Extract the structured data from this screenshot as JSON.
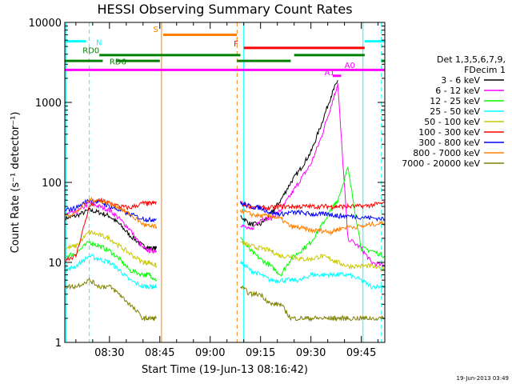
{
  "chart_data": {
    "type": "line",
    "title": "HESSI Observing Summary Count Rates",
    "xlabel": "Start Time (19-Jun-13 08:16:42)",
    "ylabel": "Count Rate (s⁻¹ detector⁻¹)",
    "y_scale": "log",
    "ylim": [
      1,
      10000
    ],
    "xlim": [
      "08:16:42",
      "09:52:00"
    ],
    "x_ticks": [
      "08:30",
      "08:45",
      "09:00",
      "09:15",
      "09:30",
      "09:45"
    ],
    "y_ticks": [
      "1",
      "10",
      "100",
      "1000",
      "10000"
    ],
    "legend": {
      "position": "right",
      "header": [
        "Det 1,3,5,6,7,9,",
        "FDecim 1"
      ],
      "entries": [
        {
          "label": "3 - 6 keV",
          "color": "#000000"
        },
        {
          "label": "6 - 12 keV",
          "color": "#ff00ff"
        },
        {
          "label": "12 - 25 keV",
          "color": "#00ff00"
        },
        {
          "label": "25 - 50 keV",
          "color": "#00ffff"
        },
        {
          "label": "50 - 100 keV",
          "color": "#c8c800"
        },
        {
          "label": "100 - 300 keV",
          "color": "#ff0000"
        },
        {
          "label": "300 - 800 keV",
          "color": "#0000ff"
        },
        {
          "label": "800 - 7000 keV",
          "color": "#ff8000"
        },
        {
          "label": "7000 - 20000 keV",
          "color": "#808000"
        }
      ]
    },
    "flag_bars": [
      {
        "label": "N",
        "color": "#00ffff",
        "start": "08:16:42",
        "end": "08:23",
        "level": 5800
      },
      {
        "label": "N",
        "color": "#00ffff",
        "start": "09:46",
        "end": "09:52",
        "level": 5800
      },
      {
        "label": "S",
        "color": "#ff8000",
        "start": "08:46",
        "end": "09:08",
        "level": 7000
      },
      {
        "label": "F",
        "color": "#ff0000",
        "start": "09:10",
        "end": "09:46",
        "level": 4800
      },
      {
        "label": "RD0",
        "color": "#008000",
        "start": "08:27",
        "end": "09:09",
        "level": 3900
      },
      {
        "label": "RD0",
        "color": "#008000",
        "start": "09:25",
        "end": "09:46",
        "level": 3900
      },
      {
        "label": "RD6",
        "color": "#008000",
        "start": "08:16:42",
        "end": "08:28",
        "level": 3300
      },
      {
        "label": "RD6",
        "color": "#008000",
        "start": "08:32",
        "end": "08:45",
        "level": 3300
      },
      {
        "label": "RD6",
        "color": "#008000",
        "start": "09:08",
        "end": "09:24",
        "level": 3300
      },
      {
        "label": "RD6",
        "color": "#008000",
        "start": "09:51",
        "end": "09:52",
        "level": 3300
      },
      {
        "label": "A1",
        "color": "#ff00ff",
        "start": "08:16:42",
        "end": "09:52",
        "level": 2550
      },
      {
        "label": "A0",
        "color": "#ff00ff",
        "start": "09:36.5",
        "end": "09:39",
        "level": 2150
      }
    ],
    "annotations": [
      {
        "text": "N",
        "color": "#00ffff"
      },
      {
        "text": "S",
        "color": "#ff8000"
      },
      {
        "text": "F",
        "color": "#ff0000"
      },
      {
        "text": "RD0",
        "color": "#008000"
      },
      {
        "text": "RD6",
        "color": "#008000"
      },
      {
        "text": "A1",
        "color": "#ff00ff"
      },
      {
        "text": "A0",
        "color": "#ff00ff"
      }
    ],
    "vertical_lines": [
      {
        "time": "08:17",
        "color": "#00ffff",
        "style": "solid"
      },
      {
        "time": "08:24",
        "color": "#00ffff",
        "style": "dashed"
      },
      {
        "time": "08:45.5",
        "color": "#ff8000",
        "style": "solid"
      },
      {
        "time": "09:08",
        "color": "#ff8000",
        "style": "dashed"
      },
      {
        "time": "09:10",
        "color": "#00ffff",
        "style": "solid"
      },
      {
        "time": "09:45.5",
        "color": "#00ffff",
        "style": "solid"
      },
      {
        "time": "09:51",
        "color": "#00ffff",
        "style": "dashed"
      }
    ],
    "x": [
      "08:17",
      "08:20",
      "08:24",
      "08:27",
      "08:30",
      "08:33",
      "08:36",
      "08:40",
      "08:42",
      "08:44",
      "09:09",
      "09:12",
      "09:15",
      "09:18",
      "09:21",
      "09:24",
      "09:27",
      "09:30",
      "09:33",
      "09:36",
      "09:38",
      "09:41",
      "09:45",
      "09:48",
      "09:52"
    ],
    "series": [
      {
        "name": "3 - 6 keV",
        "values": [
          36,
          38,
          45,
          42,
          38,
          30,
          22,
          16,
          15,
          15,
          38,
          30,
          30,
          40,
          60,
          100,
          150,
          240,
          520,
          1200,
          1900,
          null,
          null,
          null,
          null
        ]
      },
      {
        "name": "6 - 12 keV",
        "values": [
          40,
          42,
          55,
          50,
          45,
          35,
          26,
          15,
          14,
          14,
          30,
          25,
          35,
          35,
          45,
          70,
          110,
          170,
          360,
          900,
          1700,
          20,
          15,
          10,
          9
        ]
      },
      {
        "name": "12 - 25 keV",
        "values": [
          12,
          13,
          18,
          16,
          14,
          11,
          8,
          7,
          7,
          6,
          20,
          14,
          11,
          9,
          7,
          11,
          14,
          18,
          28,
          45,
          60,
          150,
          15,
          14,
          12
        ]
      },
      {
        "name": "25 - 50 keV",
        "values": [
          8,
          9,
          12,
          11,
          10,
          8,
          6,
          5,
          5,
          5,
          10,
          8,
          7,
          6,
          6,
          6,
          6,
          7,
          7,
          7,
          7,
          7,
          6,
          5,
          5
        ]
      },
      {
        "name": "50 - 100 keV",
        "values": [
          15,
          16,
          24,
          22,
          20,
          16,
          13,
          10,
          10,
          9,
          18,
          16,
          15,
          14,
          12,
          12,
          11,
          11,
          12,
          11,
          10,
          9,
          9,
          9,
          8
        ]
      },
      {
        "name": "100 - 300 keV",
        "values": [
          11,
          12,
          50,
          60,
          55,
          50,
          48,
          55,
          54,
          56,
          55,
          50,
          48,
          48,
          50,
          50,
          50,
          50,
          50,
          50,
          50,
          50,
          50,
          52,
          55
        ]
      },
      {
        "name": "300 - 800 keV",
        "values": [
          45,
          48,
          60,
          58,
          50,
          45,
          40,
          35,
          34,
          35,
          55,
          50,
          48,
          42,
          40,
          42,
          42,
          40,
          40,
          40,
          38,
          38,
          37,
          36,
          35
        ]
      },
      {
        "name": "800 - 7000 keV",
        "values": [
          38,
          42,
          60,
          60,
          55,
          48,
          40,
          30,
          28,
          28,
          45,
          40,
          38,
          38,
          35,
          28,
          27,
          25,
          25,
          24,
          26,
          28,
          28,
          30,
          31
        ]
      },
      {
        "name": "7000 - 20000 keV",
        "values": [
          5,
          5,
          6,
          5,
          5,
          4,
          3,
          2,
          2,
          2,
          5,
          4,
          4,
          3,
          3,
          2,
          2,
          2,
          2,
          2,
          2,
          2,
          2,
          2,
          2
        ]
      }
    ],
    "grid": false
  },
  "date_stamp": "19-Jun-2013 03:49"
}
